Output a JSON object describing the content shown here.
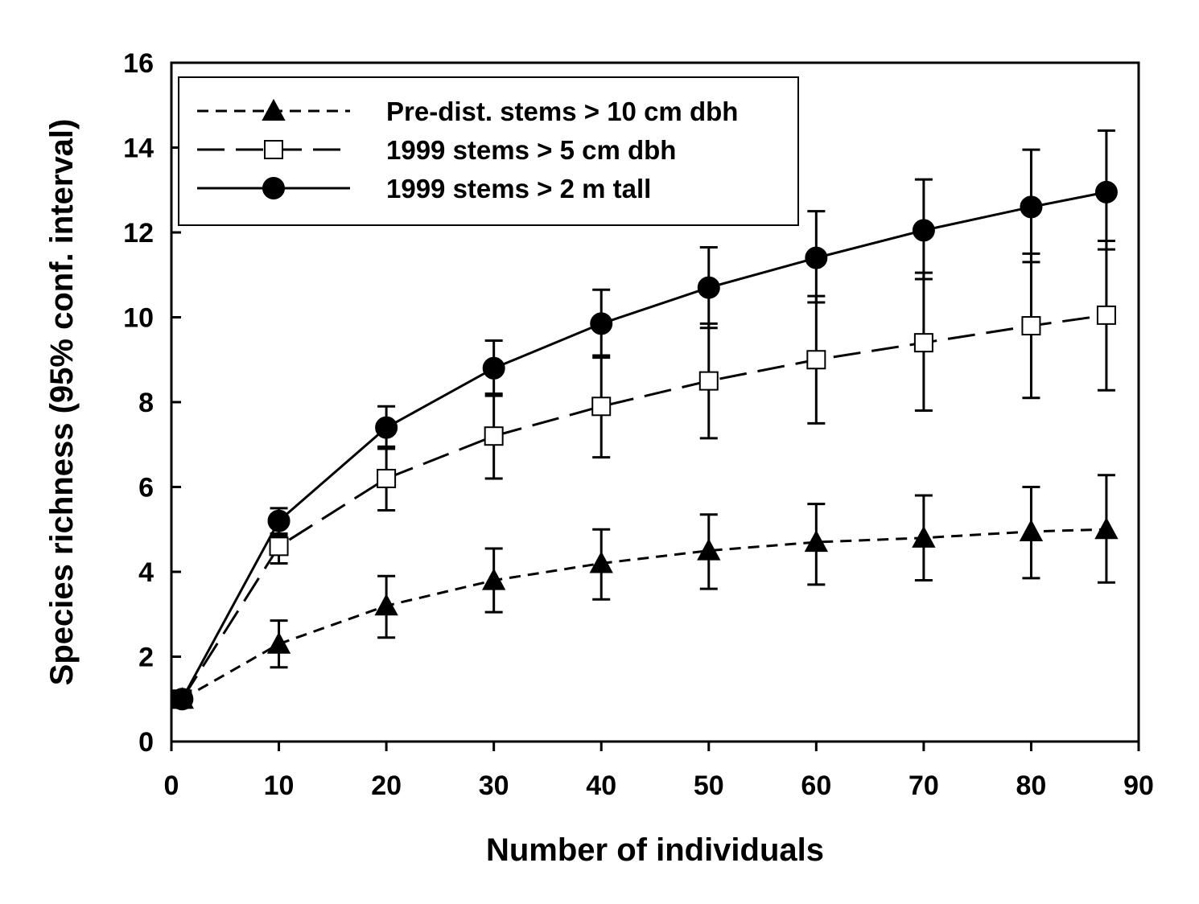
{
  "chart_data": {
    "type": "line",
    "title": "",
    "xlabel": "Number of individuals",
    "ylabel": "Species richness (95% conf. interval)",
    "xlim": [
      0,
      90
    ],
    "ylim": [
      0,
      16
    ],
    "x_ticks": [
      "0",
      "10",
      "20",
      "30",
      "40",
      "50",
      "60",
      "70",
      "80",
      "90"
    ],
    "y_ticks": [
      "0",
      "2",
      "4",
      "6",
      "8",
      "10",
      "12",
      "14",
      "16"
    ],
    "grid": false,
    "legend_position": "top-left",
    "series": [
      {
        "name": "Pre-dist. stems > 10 cm dbh",
        "marker": "triangle",
        "marker_fill": "#000000",
        "line_style": "short-dash",
        "x": [
          1,
          10,
          20,
          30,
          40,
          50,
          60,
          70,
          80,
          87
        ],
        "y": [
          1.0,
          2.3,
          3.2,
          3.8,
          4.2,
          4.5,
          4.7,
          4.8,
          4.95,
          5.0
        ],
        "ci_low": [
          1.0,
          1.75,
          2.45,
          3.05,
          3.35,
          3.6,
          3.7,
          3.8,
          3.85,
          3.75
        ],
        "ci_high": [
          1.0,
          2.85,
          3.9,
          4.55,
          5.0,
          5.35,
          5.6,
          5.8,
          6.0,
          6.28
        ]
      },
      {
        "name": "1999 stems > 5 cm dbh",
        "marker": "square",
        "marker_fill": "#ffffff",
        "line_style": "long-dash",
        "x": [
          1,
          10,
          20,
          30,
          40,
          50,
          60,
          70,
          80,
          87
        ],
        "y": [
          1.0,
          4.6,
          6.2,
          7.2,
          7.9,
          8.5,
          9.0,
          9.4,
          9.8,
          10.05
        ],
        "ci_low": [
          1.0,
          4.2,
          5.45,
          6.2,
          6.7,
          7.15,
          7.5,
          7.8,
          8.1,
          8.28
        ],
        "ci_high": [
          1.0,
          4.85,
          6.95,
          8.2,
          9.1,
          9.85,
          10.5,
          11.05,
          11.5,
          11.8
        ]
      },
      {
        "name": "1999 stems > 2 m tall",
        "marker": "circle",
        "marker_fill": "#000000",
        "line_style": "solid",
        "x": [
          1,
          10,
          20,
          30,
          40,
          50,
          60,
          70,
          80,
          87
        ],
        "y": [
          1.0,
          5.2,
          7.4,
          8.8,
          9.85,
          10.7,
          11.4,
          12.05,
          12.6,
          12.95
        ],
        "ci_low": [
          1.0,
          4.9,
          6.9,
          8.15,
          9.05,
          9.75,
          10.35,
          10.9,
          11.3,
          11.6
        ],
        "ci_high": [
          1.0,
          5.5,
          7.9,
          9.45,
          10.65,
          11.65,
          12.5,
          13.25,
          13.95,
          14.4
        ]
      }
    ]
  }
}
